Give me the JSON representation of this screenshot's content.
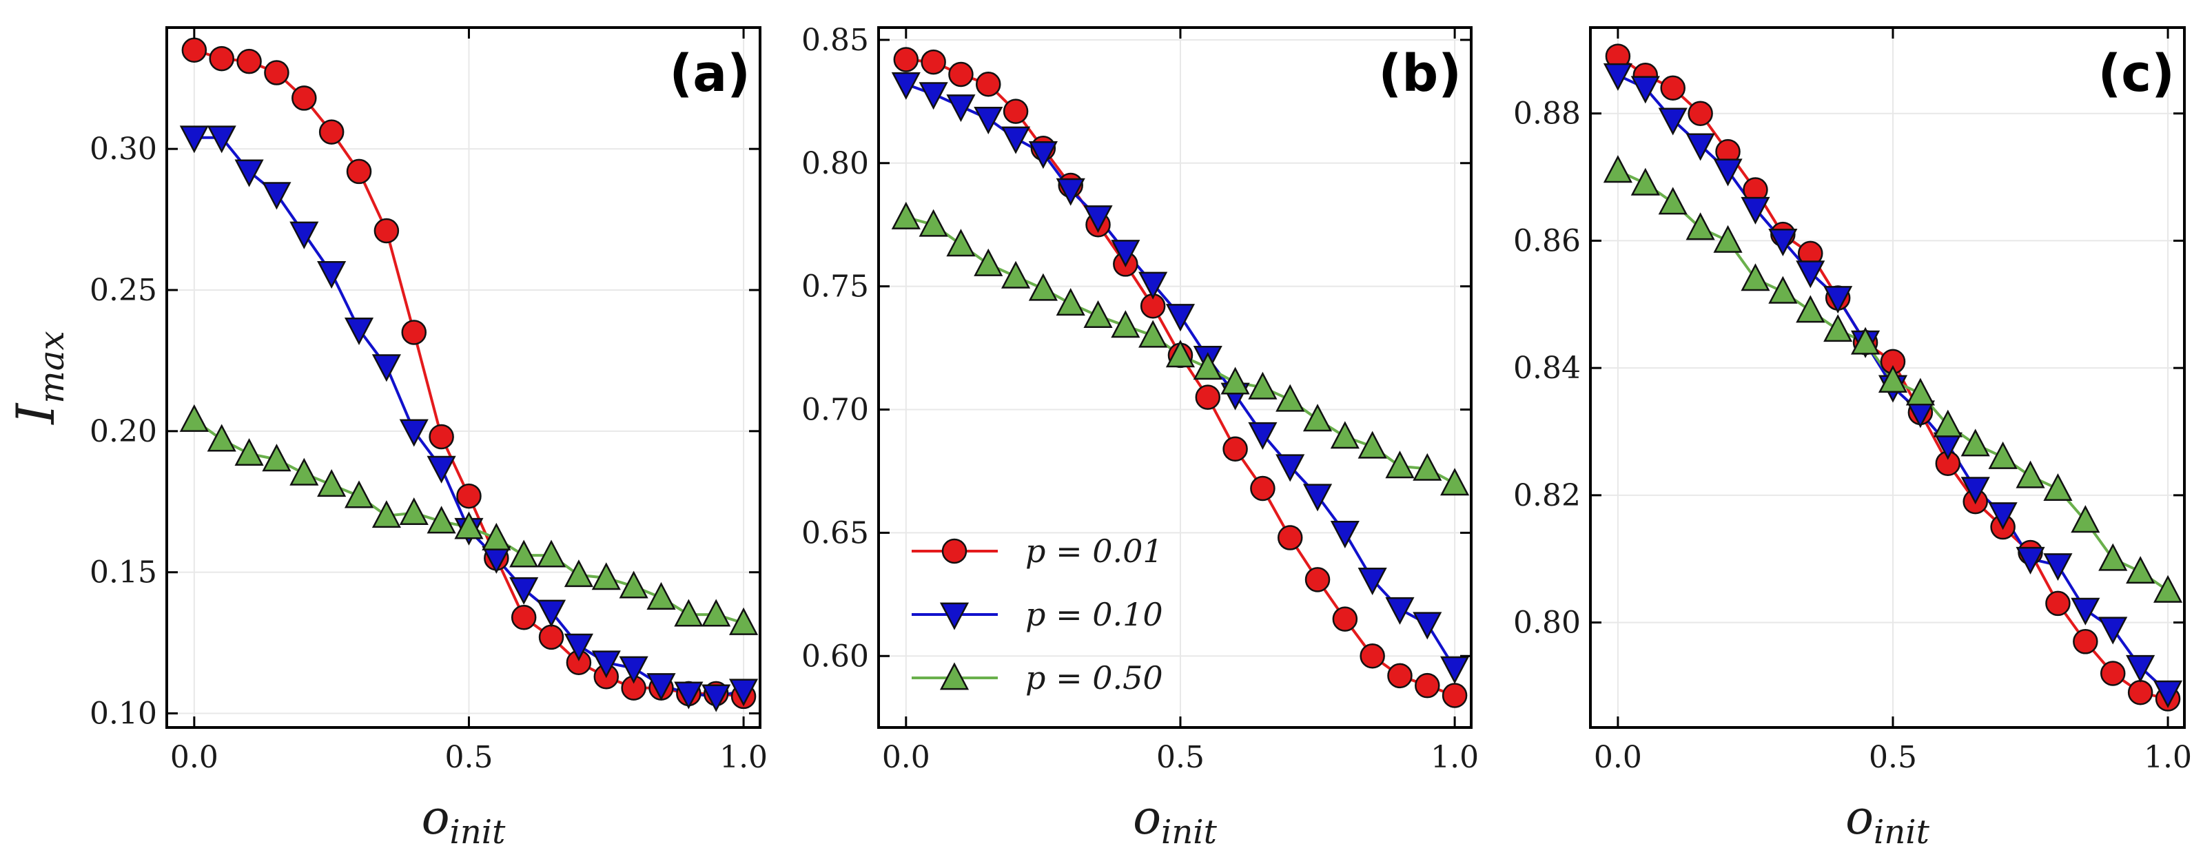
{
  "colors": {
    "p001": "#e41a1c",
    "p001_line": "#e41a1c",
    "p010": "#1111cc",
    "p010_line": "#1111cc",
    "p050": "#6ab04c",
    "p050_line": "#5aa02c",
    "marker_edge": "#111111",
    "grid": "#e8e8e8"
  },
  "chart_data": [
    {
      "type": "line",
      "panel_label": "(a)",
      "xlabel": "o_init",
      "ylabel": "I_max",
      "xlim": [
        -0.05,
        1.03
      ],
      "ylim": [
        0.095,
        0.343
      ],
      "xticks": [
        0.0,
        0.5,
        1.0
      ],
      "xtick_labels": [
        "0.0",
        "0.5",
        "1.0"
      ],
      "yticks": [
        0.1,
        0.15,
        0.2,
        0.25,
        0.3
      ],
      "ytick_labels": [
        "0.10",
        "0.15",
        "0.20",
        "0.25",
        "0.30"
      ],
      "grid": true,
      "x": [
        0.0,
        0.05,
        0.1,
        0.15,
        0.2,
        0.25,
        0.3,
        0.35,
        0.4,
        0.45,
        0.5,
        0.55,
        0.6,
        0.65,
        0.7,
        0.75,
        0.8,
        0.85,
        0.9,
        0.95,
        1.0
      ],
      "series": [
        {
          "name": "p = 0.01",
          "marker": "circle",
          "color_key": "p001",
          "values": [
            0.335,
            0.332,
            0.331,
            0.327,
            0.318,
            0.306,
            0.292,
            0.271,
            0.235,
            0.198,
            0.177,
            0.155,
            0.134,
            0.127,
            0.118,
            0.113,
            0.109,
            0.109,
            0.107,
            0.107,
            0.106
          ]
        },
        {
          "name": "p = 0.10",
          "marker": "triangle-down",
          "color_key": "p010",
          "values": [
            0.304,
            0.304,
            0.292,
            0.284,
            0.27,
            0.256,
            0.236,
            0.223,
            0.2,
            0.187,
            0.165,
            0.155,
            0.144,
            0.136,
            0.124,
            0.118,
            0.116,
            0.11,
            0.107,
            0.106,
            0.108
          ]
        },
        {
          "name": "p = 0.50",
          "marker": "triangle-up",
          "color_key": "p050",
          "values": [
            0.204,
            0.197,
            0.192,
            0.19,
            0.185,
            0.181,
            0.177,
            0.17,
            0.171,
            0.168,
            0.166,
            0.162,
            0.156,
            0.156,
            0.149,
            0.148,
            0.145,
            0.141,
            0.135,
            0.135,
            0.132
          ]
        }
      ]
    },
    {
      "type": "line",
      "panel_label": "(b)",
      "xlabel": "o_init",
      "ylabel": "",
      "xlim": [
        -0.05,
        1.03
      ],
      "ylim": [
        0.571,
        0.855
      ],
      "xticks": [
        0.0,
        0.5,
        1.0
      ],
      "xtick_labels": [
        "0.0",
        "0.5",
        "1.0"
      ],
      "yticks": [
        0.6,
        0.65,
        0.7,
        0.75,
        0.8,
        0.85
      ],
      "ytick_labels": [
        "0.60",
        "0.65",
        "0.70",
        "0.75",
        "0.80",
        "0.85"
      ],
      "grid": true,
      "legend": {
        "placement": "lower-left",
        "entries": [
          {
            "label": "p = 0.01",
            "marker": "circle",
            "color_key": "p001"
          },
          {
            "label": "p = 0.10",
            "marker": "triangle-down",
            "color_key": "p010"
          },
          {
            "label": "p = 0.50",
            "marker": "triangle-up",
            "color_key": "p050"
          }
        ]
      },
      "x": [
        0.0,
        0.05,
        0.1,
        0.15,
        0.2,
        0.25,
        0.3,
        0.35,
        0.4,
        0.45,
        0.5,
        0.55,
        0.6,
        0.65,
        0.7,
        0.75,
        0.8,
        0.85,
        0.9,
        0.95,
        1.0
      ],
      "series": [
        {
          "name": "p = 0.01",
          "marker": "circle",
          "color_key": "p001",
          "values": [
            0.842,
            0.841,
            0.836,
            0.832,
            0.821,
            0.806,
            0.791,
            0.775,
            0.759,
            0.742,
            0.722,
            0.705,
            0.684,
            0.668,
            0.648,
            0.631,
            0.615,
            0.6,
            0.592,
            0.588,
            0.584
          ]
        },
        {
          "name": "p = 0.10",
          "marker": "triangle-down",
          "color_key": "p010",
          "values": [
            0.832,
            0.828,
            0.823,
            0.818,
            0.81,
            0.804,
            0.789,
            0.778,
            0.764,
            0.751,
            0.738,
            0.721,
            0.706,
            0.69,
            0.677,
            0.665,
            0.65,
            0.631,
            0.619,
            0.613,
            0.595
          ]
        },
        {
          "name": "p = 0.50",
          "marker": "triangle-up",
          "color_key": "p050",
          "values": [
            0.778,
            0.775,
            0.767,
            0.759,
            0.754,
            0.749,
            0.743,
            0.738,
            0.734,
            0.73,
            0.722,
            0.717,
            0.711,
            0.709,
            0.704,
            0.696,
            0.689,
            0.685,
            0.677,
            0.676,
            0.67
          ]
        }
      ]
    },
    {
      "type": "line",
      "panel_label": "(c)",
      "xlabel": "o_init",
      "ylabel": "",
      "xlim": [
        -0.05,
        1.03
      ],
      "ylim": [
        0.7835,
        0.8935
      ],
      "xticks": [
        0.0,
        0.5,
        1.0
      ],
      "xtick_labels": [
        "0.0",
        "0.5",
        "1.0"
      ],
      "yticks": [
        0.8,
        0.82,
        0.84,
        0.86,
        0.88
      ],
      "ytick_labels": [
        "0.80",
        "0.82",
        "0.84",
        "0.86",
        "0.88"
      ],
      "grid": true,
      "x": [
        0.0,
        0.05,
        0.1,
        0.15,
        0.2,
        0.25,
        0.3,
        0.35,
        0.4,
        0.45,
        0.5,
        0.55,
        0.6,
        0.65,
        0.7,
        0.75,
        0.8,
        0.85,
        0.9,
        0.95,
        1.0
      ],
      "series": [
        {
          "name": "p = 0.01",
          "marker": "circle",
          "color_key": "p001",
          "values": [
            0.889,
            0.886,
            0.884,
            0.88,
            0.874,
            0.868,
            0.861,
            0.858,
            0.851,
            0.844,
            0.841,
            0.833,
            0.825,
            0.819,
            0.815,
            0.811,
            0.803,
            0.797,
            0.792,
            0.789,
            0.788
          ]
        },
        {
          "name": "p = 0.10",
          "marker": "triangle-down",
          "color_key": "p010",
          "values": [
            0.886,
            0.884,
            0.879,
            0.875,
            0.871,
            0.865,
            0.86,
            0.855,
            0.851,
            0.844,
            0.837,
            0.833,
            0.828,
            0.821,
            0.817,
            0.81,
            0.809,
            0.802,
            0.799,
            0.793,
            0.789
          ]
        },
        {
          "name": "p = 0.50",
          "marker": "triangle-up",
          "color_key": "p050",
          "values": [
            0.871,
            0.869,
            0.866,
            0.862,
            0.86,
            0.854,
            0.852,
            0.849,
            0.846,
            0.844,
            0.838,
            0.836,
            0.831,
            0.828,
            0.826,
            0.823,
            0.821,
            0.816,
            0.81,
            0.808,
            0.805
          ]
        }
      ]
    }
  ]
}
